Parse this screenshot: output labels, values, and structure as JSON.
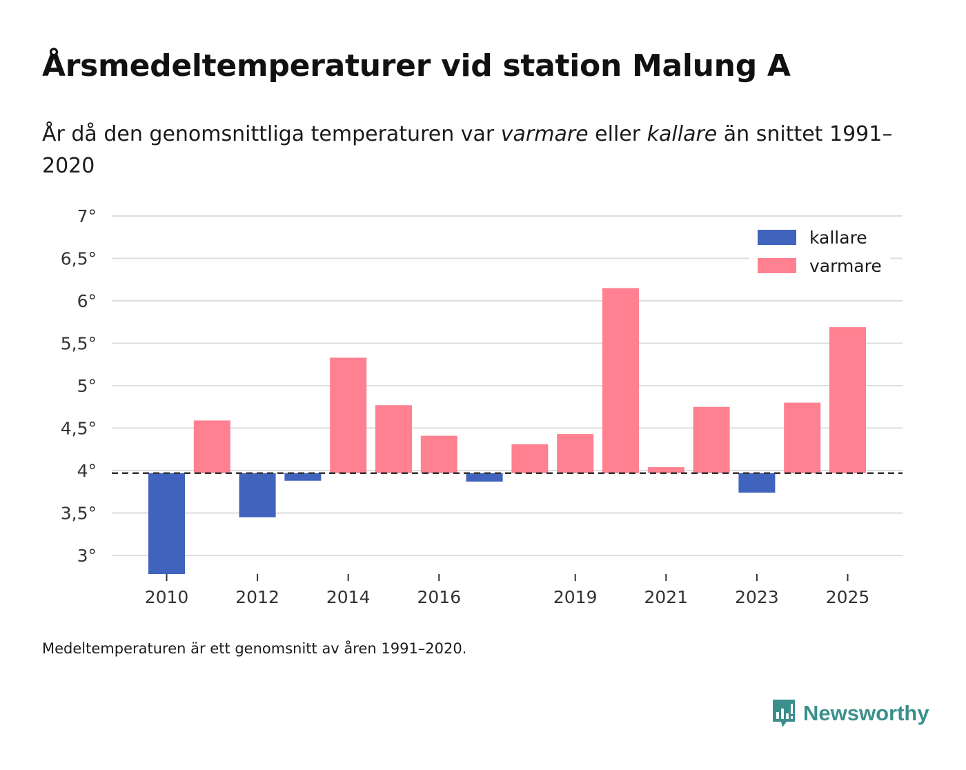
{
  "title": "Årsmedeltemperaturer vid station Malung A",
  "subtitle": {
    "part1": "År då den genomsnittliga temperaturen var ",
    "warmer_word": "varmare",
    "part2": " eller ",
    "colder_word": "kallare",
    "part3": " än snittet 1991–2020"
  },
  "footnote": "Medeltemperaturen är ett genomsnitt av åren 1991–2020.",
  "brand": {
    "name": "Newsworthy",
    "logo_icon": "newsworthy-bar-chart-icon"
  },
  "colors": {
    "colder": "#4063bd",
    "warmer": "#ff8090",
    "grid": "#dddddd",
    "baseline": "#333333",
    "brand": "#3b8f8c"
  },
  "chart_data": {
    "type": "bar",
    "baseline": 3.97,
    "ylim": [
      2.78,
      7
    ],
    "yticks": [
      3,
      3.5,
      4,
      4.5,
      5,
      5.5,
      6,
      6.5,
      7
    ],
    "ytick_labels": [
      "3°",
      "3,5°",
      "4°",
      "4,5°",
      "5°",
      "5,5°",
      "6°",
      "6,5°",
      "7°"
    ],
    "xticks": [
      2010,
      2012,
      2014,
      2016,
      2019,
      2021,
      2023,
      2025
    ],
    "legend": [
      {
        "key": "colder",
        "label": "kallare"
      },
      {
        "key": "warmer",
        "label": "varmare"
      }
    ],
    "legend_position": "top-right",
    "bars": [
      {
        "year": 2010,
        "value": 2.78
      },
      {
        "year": 2011,
        "value": 4.59
      },
      {
        "year": 2012,
        "value": 3.45
      },
      {
        "year": 2013,
        "value": 3.88
      },
      {
        "year": 2014,
        "value": 5.33
      },
      {
        "year": 2015,
        "value": 4.77
      },
      {
        "year": 2016,
        "value": 4.41
      },
      {
        "year": 2017,
        "value": 3.87
      },
      {
        "year": 2018,
        "value": 4.31
      },
      {
        "year": 2019,
        "value": 4.43
      },
      {
        "year": 2020,
        "value": 6.15
      },
      {
        "year": 2021,
        "value": 4.04
      },
      {
        "year": 2022,
        "value": 4.75
      },
      {
        "year": 2023,
        "value": 3.74
      },
      {
        "year": 2024,
        "value": 4.8
      },
      {
        "year": 2025,
        "value": 5.69
      }
    ]
  }
}
